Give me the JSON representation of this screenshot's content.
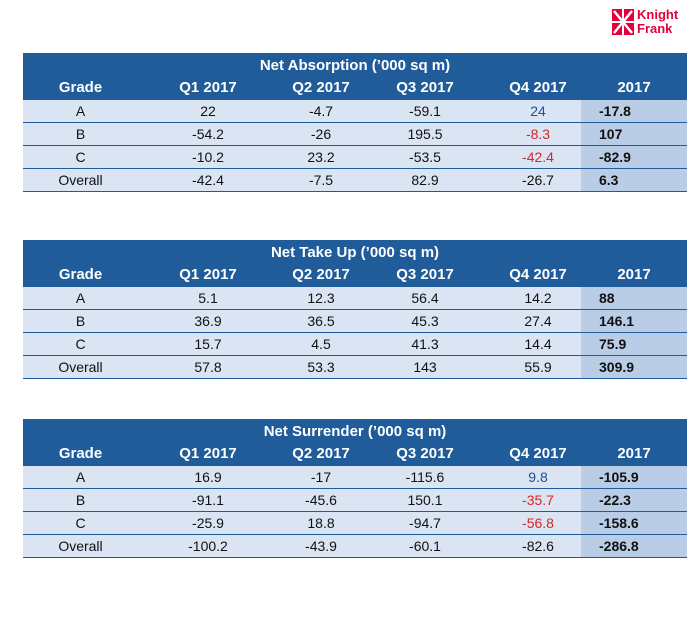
{
  "logo": {
    "line1": "Knight",
    "line2": "Frank",
    "color": "#e4003b"
  },
  "colors": {
    "header": "#1f5c99",
    "row": "#dae4f2",
    "total": "#b9cde6",
    "positive": "#1f4fa0",
    "negative": "#d9262b"
  },
  "columns": [
    "Grade",
    "Q1 2017",
    "Q2 2017",
    "Q3 2017",
    "Q4 2017",
    "2017"
  ],
  "tables": [
    {
      "title": "Net Absorption (’000 sq m)",
      "rows": [
        {
          "grade": "A",
          "q1": "22",
          "q2": "-4.7",
          "q3": "-59.1",
          "q4": "24",
          "q4_color": "blue",
          "total": "-17.8"
        },
        {
          "grade": "B",
          "q1": "-54.2",
          "q2": "-26",
          "q3": "195.5",
          "q4": "-8.3",
          "q4_color": "red",
          "total": "107"
        },
        {
          "grade": "C",
          "q1": "-10.2",
          "q2": "23.2",
          "q3": "-53.5",
          "q4": "-42.4",
          "q4_color": "red",
          "total": "-82.9"
        },
        {
          "grade": "Overall",
          "q1": "-42.4",
          "q2": "-7.5",
          "q3": "82.9",
          "q4": "-26.7",
          "q4_color": "",
          "total": "6.3"
        }
      ]
    },
    {
      "title": "Net Take Up (’000 sq m)",
      "rows": [
        {
          "grade": "A",
          "q1": "5.1",
          "q2": "12.3",
          "q3": "56.4",
          "q4": "14.2",
          "q4_color": "",
          "total": "88"
        },
        {
          "grade": "B",
          "q1": "36.9",
          "q2": "36.5",
          "q3": "45.3",
          "q4": "27.4",
          "q4_color": "",
          "total": "146.1"
        },
        {
          "grade": "C",
          "q1": "15.7",
          "q2": "4.5",
          "q3": "41.3",
          "q4": "14.4",
          "q4_color": "",
          "total": "75.9"
        },
        {
          "grade": "Overall",
          "q1": "57.8",
          "q2": "53.3",
          "q3": "143",
          "q4": "55.9",
          "q4_color": "",
          "total": "309.9"
        }
      ]
    },
    {
      "title": "Net Surrender (’000 sq m)",
      "rows": [
        {
          "grade": "A",
          "q1": "16.9",
          "q2": "-17",
          "q3": "-115.6",
          "q4": "9.8",
          "q4_color": "blue",
          "total": "-105.9"
        },
        {
          "grade": "B",
          "q1": "-91.1",
          "q2": "-45.6",
          "q3": "150.1",
          "q4": "-35.7",
          "q4_color": "red",
          "total": "-22.3"
        },
        {
          "grade": "C",
          "q1": "-25.9",
          "q2": "18.8",
          "q3": "-94.7",
          "q4": "-56.8",
          "q4_color": "red",
          "total": "-158.6"
        },
        {
          "grade": "Overall",
          "q1": "-100.2",
          "q2": "-43.9",
          "q3": "-60.1",
          "q4": "-82.6",
          "q4_color": "",
          "total": "-286.8"
        }
      ]
    }
  ]
}
